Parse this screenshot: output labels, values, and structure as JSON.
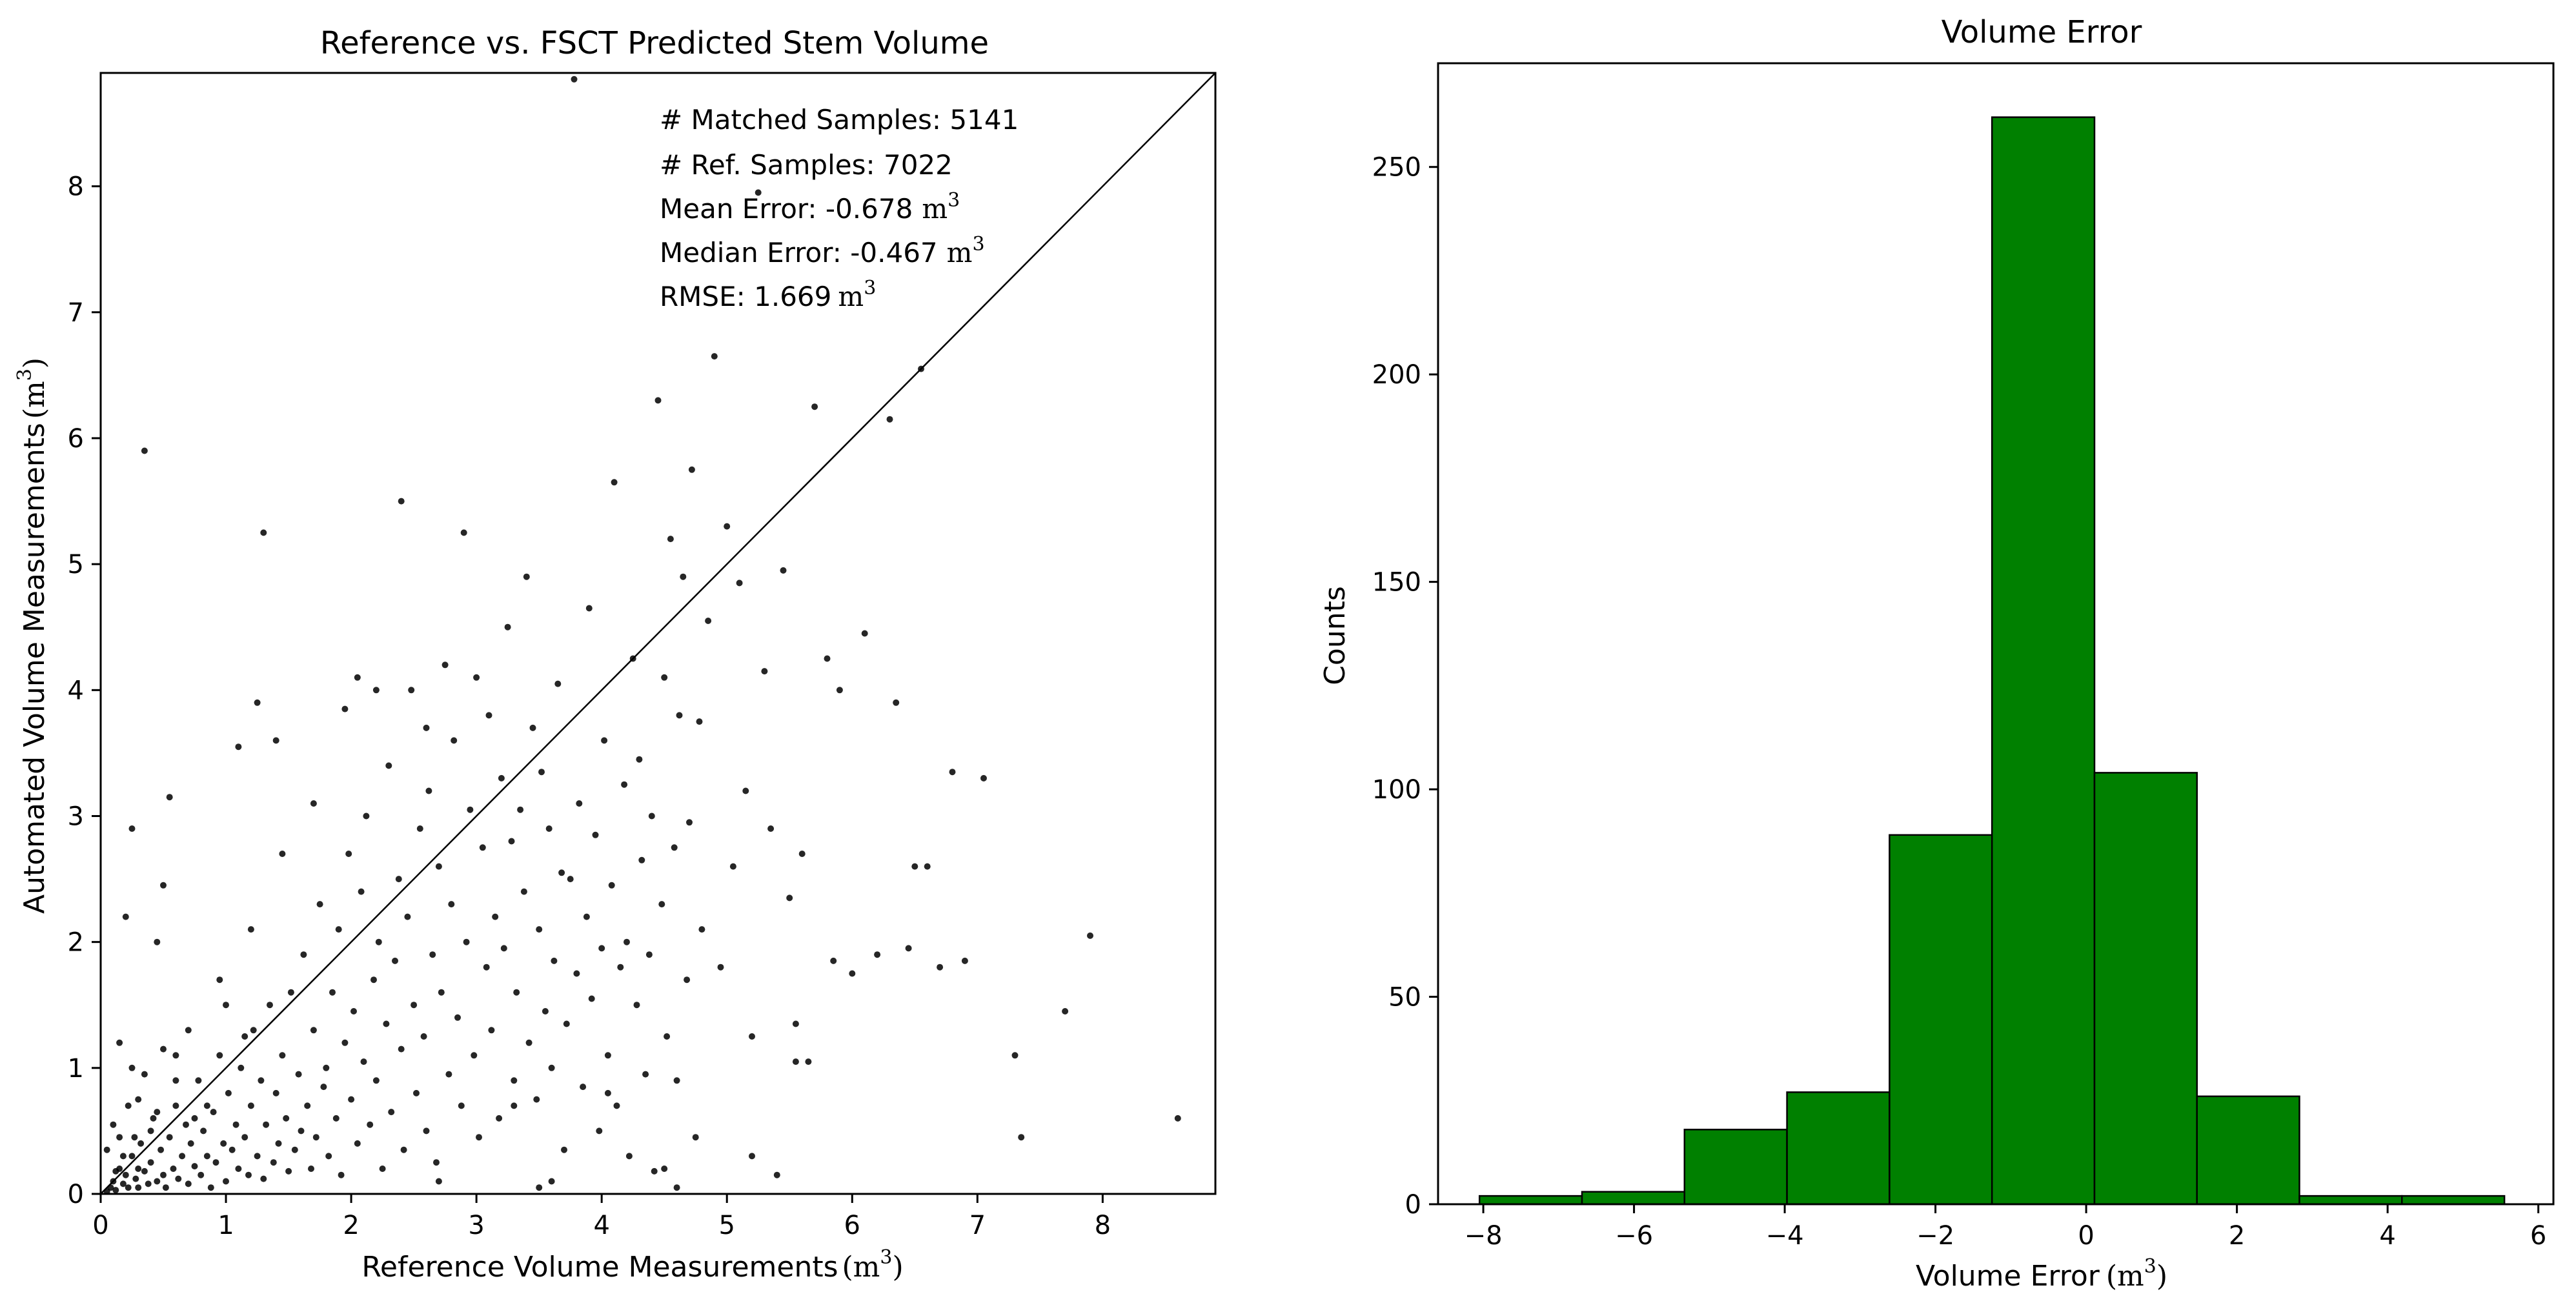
{
  "chart_data": [
    {
      "type": "scatter",
      "title": "Reference vs. FSCT Predicted Stem Volume",
      "xlabel": "Reference Volume Measurements",
      "xlabel_unit": "(m",
      "ylabel": "Automated Volume Measurements",
      "ylabel_unit": "(m",
      "unit_exponent": "3",
      "unit_close": ")",
      "xlim": [
        0,
        8.9
      ],
      "ylim": [
        0,
        8.9
      ],
      "xticks": [
        "0",
        "1",
        "2",
        "3",
        "4",
        "5",
        "6",
        "7",
        "8"
      ],
      "yticks": [
        "0",
        "1",
        "2",
        "3",
        "4",
        "5",
        "6",
        "7",
        "8"
      ],
      "identity_line": true,
      "annotations": {
        "matched": "# Matched Samples: 5141",
        "ref": "# Ref. Samples: 7022",
        "mean": "Mean Error: -0.678",
        "median": "Median Error: -0.467",
        "rmse": "RMSE: 1.669",
        "unit": "m",
        "unit_exponent": "3"
      },
      "point_color": "#000000",
      "points": [
        [
          0.05,
          0.02
        ],
        [
          0.08,
          0.05
        ],
        [
          0.1,
          0.1
        ],
        [
          0.12,
          0.03
        ],
        [
          0.15,
          0.2
        ],
        [
          0.18,
          0.08
        ],
        [
          0.2,
          0.15
        ],
        [
          0.22,
          0.05
        ],
        [
          0.25,
          0.3
        ],
        [
          0.28,
          0.12
        ],
        [
          0.3,
          0.05
        ],
        [
          0.32,
          0.4
        ],
        [
          0.35,
          0.18
        ],
        [
          0.38,
          0.08
        ],
        [
          0.4,
          0.25
        ],
        [
          0.42,
          0.6
        ],
        [
          0.45,
          0.1
        ],
        [
          0.48,
          0.35
        ],
        [
          0.5,
          0.15
        ],
        [
          0.52,
          0.05
        ],
        [
          0.55,
          0.45
        ],
        [
          0.58,
          0.2
        ],
        [
          0.6,
          0.7
        ],
        [
          0.62,
          0.12
        ],
        [
          0.65,
          0.3
        ],
        [
          0.68,
          0.55
        ],
        [
          0.7,
          0.08
        ],
        [
          0.72,
          0.4
        ],
        [
          0.75,
          0.22
        ],
        [
          0.78,
          0.9
        ],
        [
          0.8,
          0.15
        ],
        [
          0.82,
          0.5
        ],
        [
          0.85,
          0.3
        ],
        [
          0.88,
          0.05
        ],
        [
          0.9,
          0.65
        ],
        [
          0.92,
          0.25
        ],
        [
          0.95,
          1.1
        ],
        [
          0.98,
          0.4
        ],
        [
          1.0,
          0.1
        ],
        [
          1.02,
          0.8
        ],
        [
          1.05,
          0.35
        ],
        [
          1.08,
          0.55
        ],
        [
          1.1,
          0.2
        ],
        [
          1.12,
          1.0
        ],
        [
          1.15,
          0.45
        ],
        [
          1.18,
          0.15
        ],
        [
          1.2,
          0.7
        ],
        [
          1.22,
          1.3
        ],
        [
          1.25,
          0.3
        ],
        [
          1.28,
          0.9
        ],
        [
          1.3,
          0.12
        ],
        [
          1.32,
          0.55
        ],
        [
          1.35,
          1.5
        ],
        [
          1.38,
          0.25
        ],
        [
          1.4,
          0.8
        ],
        [
          1.42,
          0.4
        ],
        [
          1.45,
          1.1
        ],
        [
          1.48,
          0.6
        ],
        [
          1.5,
          0.18
        ],
        [
          1.52,
          1.6
        ],
        [
          1.55,
          0.35
        ],
        [
          1.58,
          0.95
        ],
        [
          1.6,
          0.5
        ],
        [
          1.62,
          1.9
        ],
        [
          1.65,
          0.7
        ],
        [
          1.68,
          0.2
        ],
        [
          1.7,
          1.3
        ],
        [
          1.72,
          0.45
        ],
        [
          1.75,
          2.3
        ],
        [
          1.78,
          0.85
        ],
        [
          1.8,
          1.0
        ],
        [
          1.82,
          0.3
        ],
        [
          1.85,
          1.6
        ],
        [
          1.88,
          0.6
        ],
        [
          1.9,
          2.1
        ],
        [
          1.92,
          0.15
        ],
        [
          1.95,
          1.2
        ],
        [
          1.98,
          2.7
        ],
        [
          2.0,
          0.75
        ],
        [
          2.02,
          1.45
        ],
        [
          2.05,
          0.4
        ],
        [
          2.08,
          2.4
        ],
        [
          2.1,
          1.05
        ],
        [
          2.12,
          3.0
        ],
        [
          2.15,
          0.55
        ],
        [
          2.18,
          1.7
        ],
        [
          2.2,
          0.9
        ],
        [
          2.22,
          2.0
        ],
        [
          2.25,
          0.2
        ],
        [
          2.28,
          1.35
        ],
        [
          2.3,
          3.4
        ],
        [
          2.32,
          0.65
        ],
        [
          2.35,
          1.85
        ],
        [
          2.38,
          2.5
        ],
        [
          2.4,
          1.15
        ],
        [
          2.42,
          0.35
        ],
        [
          2.45,
          2.2
        ],
        [
          2.48,
          4.0
        ],
        [
          2.5,
          1.5
        ],
        [
          2.52,
          0.8
        ],
        [
          2.55,
          2.9
        ],
        [
          2.58,
          1.25
        ],
        [
          2.6,
          0.5
        ],
        [
          2.62,
          3.2
        ],
        [
          2.65,
          1.9
        ],
        [
          2.68,
          0.25
        ],
        [
          2.7,
          2.6
        ],
        [
          2.72,
          1.6
        ],
        [
          2.75,
          4.2
        ],
        [
          2.78,
          0.95
        ],
        [
          2.8,
          2.3
        ],
        [
          2.82,
          3.6
        ],
        [
          2.85,
          1.4
        ],
        [
          2.88,
          0.7
        ],
        [
          2.9,
          5.25
        ],
        [
          2.92,
          2.0
        ],
        [
          2.95,
          3.05
        ],
        [
          2.98,
          1.1
        ],
        [
          3.0,
          4.1
        ],
        [
          3.02,
          0.45
        ],
        [
          3.05,
          2.75
        ],
        [
          3.08,
          1.8
        ],
        [
          3.1,
          3.8
        ],
        [
          3.12,
          1.3
        ],
        [
          3.15,
          2.2
        ],
        [
          3.18,
          0.6
        ],
        [
          3.2,
          3.3
        ],
        [
          3.22,
          1.95
        ],
        [
          3.25,
          4.5
        ],
        [
          3.28,
          2.8
        ],
        [
          3.3,
          0.9
        ],
        [
          3.32,
          1.6
        ],
        [
          3.35,
          3.05
        ],
        [
          3.38,
          2.4
        ],
        [
          3.4,
          4.9
        ],
        [
          3.42,
          1.2
        ],
        [
          3.45,
          3.7
        ],
        [
          3.48,
          0.75
        ],
        [
          3.5,
          2.1
        ],
        [
          3.52,
          3.35
        ],
        [
          3.55,
          1.45
        ],
        [
          3.58,
          2.9
        ],
        [
          3.6,
          0.1
        ],
        [
          3.62,
          1.85
        ],
        [
          3.65,
          4.05
        ],
        [
          3.68,
          2.55
        ],
        [
          3.7,
          0.35
        ],
        [
          3.72,
          1.35
        ],
        [
          3.75,
          2.5
        ],
        [
          3.78,
          8.85
        ],
        [
          3.8,
          1.75
        ],
        [
          3.82,
          3.1
        ],
        [
          3.85,
          0.85
        ],
        [
          3.88,
          2.2
        ],
        [
          3.9,
          4.65
        ],
        [
          3.92,
          1.55
        ],
        [
          3.95,
          2.85
        ],
        [
          3.98,
          0.5
        ],
        [
          4.0,
          1.95
        ],
        [
          4.02,
          3.6
        ],
        [
          4.05,
          1.1
        ],
        [
          4.08,
          2.45
        ],
        [
          4.1,
          5.65
        ],
        [
          4.12,
          0.7
        ],
        [
          4.15,
          1.8
        ],
        [
          4.18,
          3.25
        ],
        [
          4.2,
          2.0
        ],
        [
          4.22,
          0.3
        ],
        [
          4.25,
          4.25
        ],
        [
          4.28,
          1.5
        ],
        [
          4.3,
          3.45
        ],
        [
          4.32,
          2.65
        ],
        [
          4.35,
          0.95
        ],
        [
          4.38,
          1.9
        ],
        [
          4.4,
          3.0
        ],
        [
          4.42,
          0.18
        ],
        [
          4.45,
          6.3
        ],
        [
          4.48,
          2.3
        ],
        [
          4.5,
          4.1
        ],
        [
          4.52,
          1.25
        ],
        [
          4.55,
          5.2
        ],
        [
          4.58,
          2.75
        ],
        [
          4.6,
          0.05
        ],
        [
          4.62,
          3.8
        ],
        [
          4.65,
          4.9
        ],
        [
          4.68,
          1.7
        ],
        [
          4.7,
          2.95
        ],
        [
          4.72,
          5.75
        ],
        [
          4.75,
          0.45
        ],
        [
          4.78,
          3.75
        ],
        [
          4.8,
          2.1
        ],
        [
          4.85,
          4.55
        ],
        [
          4.9,
          6.65
        ],
        [
          4.95,
          1.8
        ],
        [
          5.0,
          5.3
        ],
        [
          5.05,
          2.6
        ],
        [
          5.1,
          4.85
        ],
        [
          5.15,
          3.2
        ],
        [
          5.2,
          1.25
        ],
        [
          5.25,
          7.95
        ],
        [
          5.3,
          4.15
        ],
        [
          5.35,
          2.9
        ],
        [
          5.4,
          0.15
        ],
        [
          5.45,
          4.95
        ],
        [
          5.5,
          2.35
        ],
        [
          5.55,
          1.35
        ],
        [
          5.6,
          2.7
        ],
        [
          5.65,
          1.05
        ],
        [
          5.7,
          6.25
        ],
        [
          5.8,
          4.25
        ],
        [
          5.85,
          1.85
        ],
        [
          5.9,
          4.0
        ],
        [
          6.0,
          1.75
        ],
        [
          6.1,
          4.45
        ],
        [
          6.2,
          1.9
        ],
        [
          6.3,
          6.15
        ],
        [
          6.35,
          3.9
        ],
        [
          6.45,
          1.95
        ],
        [
          6.55,
          6.55
        ],
        [
          6.6,
          2.6
        ],
        [
          6.7,
          1.8
        ],
        [
          6.8,
          3.35
        ],
        [
          6.9,
          1.85
        ],
        [
          7.05,
          3.3
        ],
        [
          7.3,
          1.1
        ],
        [
          7.35,
          0.45
        ],
        [
          7.7,
          1.45
        ],
        [
          7.9,
          2.05
        ],
        [
          8.6,
          0.6
        ],
        [
          0.35,
          5.9
        ],
        [
          1.3,
          5.25
        ],
        [
          2.4,
          5.5
        ],
        [
          1.25,
          3.9
        ],
        [
          1.4,
          3.6
        ],
        [
          1.1,
          3.55
        ],
        [
          0.25,
          2.9
        ],
        [
          0.55,
          3.15
        ],
        [
          0.2,
          2.2
        ],
        [
          0.5,
          2.45
        ],
        [
          0.45,
          2.0
        ],
        [
          0.15,
          1.2
        ],
        [
          0.25,
          1.0
        ],
        [
          0.1,
          0.55
        ],
        [
          0.35,
          0.95
        ],
        [
          0.6,
          1.1
        ],
        [
          0.7,
          1.3
        ],
        [
          0.95,
          1.7
        ],
        [
          1.2,
          2.1
        ],
        [
          1.45,
          2.7
        ],
        [
          1.7,
          3.1
        ],
        [
          1.95,
          3.85
        ],
        [
          2.05,
          4.1
        ],
        [
          2.2,
          4.0
        ],
        [
          2.6,
          3.7
        ],
        [
          0.3,
          0.75
        ],
        [
          0.4,
          0.5
        ],
        [
          0.05,
          0.35
        ],
        [
          0.15,
          0.45
        ],
        [
          0.22,
          0.7
        ],
        [
          0.6,
          0.9
        ],
        [
          0.85,
          0.7
        ],
        [
          1.0,
          1.5
        ],
        [
          1.15,
          1.25
        ],
        [
          0.5,
          1.15
        ],
        [
          0.75,
          0.6
        ],
        [
          0.3,
          0.2
        ],
        [
          0.18,
          0.3
        ],
        [
          0.12,
          0.18
        ],
        [
          0.27,
          0.45
        ],
        [
          0.45,
          0.65
        ],
        [
          2.7,
          0.1
        ],
        [
          3.5,
          0.05
        ],
        [
          3.3,
          0.7
        ],
        [
          4.6,
          0.9
        ],
        [
          5.2,
          0.3
        ],
        [
          4.5,
          0.2
        ],
        [
          5.55,
          1.05
        ],
        [
          6.5,
          2.6
        ],
        [
          3.6,
          1.0
        ],
        [
          4.05,
          0.8
        ]
      ]
    },
    {
      "type": "bar",
      "title": "Volume Error",
      "xlabel": "Volume Error",
      "xlabel_unit": "(m",
      "unit_exponent": "3",
      "unit_close": ")",
      "ylabel": "Counts",
      "xlim": [
        -8.6,
        6.2
      ],
      "ylim": [
        0,
        275
      ],
      "xticks": [
        {
          "value": -8,
          "label": "−8"
        },
        {
          "value": -6,
          "label": "−6"
        },
        {
          "value": -4,
          "label": "−4"
        },
        {
          "value": -2,
          "label": "−2"
        },
        {
          "value": 0,
          "label": "0"
        },
        {
          "value": 2,
          "label": "2"
        },
        {
          "value": 4,
          "label": "4"
        },
        {
          "value": 6,
          "label": "6"
        }
      ],
      "yticks": [
        "0",
        "50",
        "100",
        "150",
        "200",
        "250"
      ],
      "bar_color": "#008000",
      "bin_edges": [
        -8.05,
        -6.69,
        -5.33,
        -3.97,
        -2.61,
        -1.25,
        0.11,
        1.47,
        2.83,
        4.19,
        5.55
      ],
      "counts": [
        2,
        3,
        18,
        27,
        89,
        262,
        104,
        26,
        2,
        2
      ]
    }
  ]
}
